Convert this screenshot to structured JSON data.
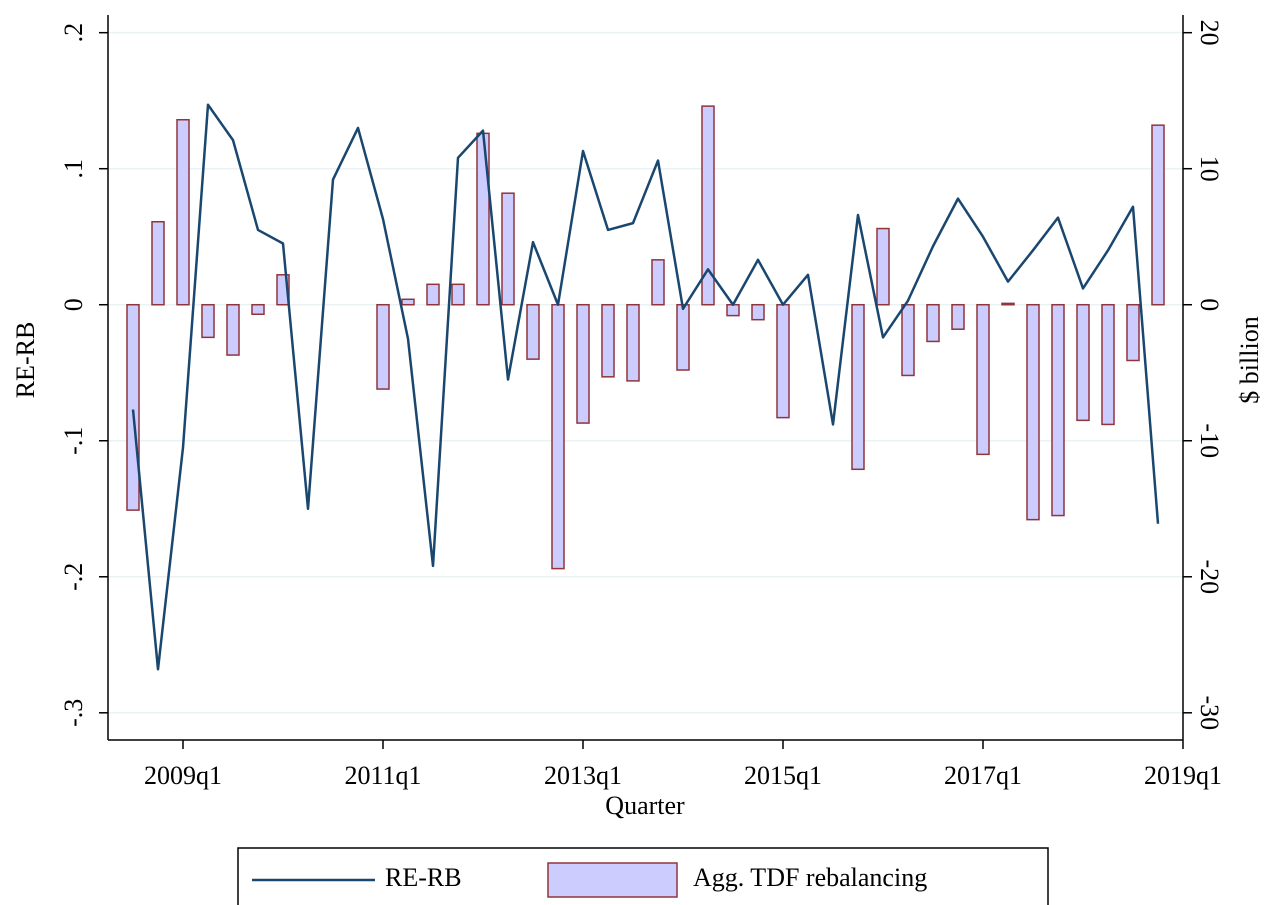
{
  "chart_data": {
    "type": "line-bar",
    "x_label": "Quarter",
    "y_label": "RE-RB",
    "y2_label": "$ billion",
    "x": [
      "2008q3",
      "2008q4",
      "2009q1",
      "2009q2",
      "2009q3",
      "2009q4",
      "2010q1",
      "2010q2",
      "2010q3",
      "2010q4",
      "2011q1",
      "2011q2",
      "2011q3",
      "2011q4",
      "2012q1",
      "2012q2",
      "2012q3",
      "2012q4",
      "2013q1",
      "2013q2",
      "2013q3",
      "2013q4",
      "2014q1",
      "2014q2",
      "2014q3",
      "2014q4",
      "2015q1",
      "2015q2",
      "2015q3",
      "2015q4",
      "2016q1",
      "2016q2",
      "2016q3",
      "2016q4",
      "2017q1",
      "2017q2",
      "2017q3",
      "2017q4",
      "2018q1",
      "2018q2",
      "2018q3",
      "2018q4"
    ],
    "xlim": [
      "2008q2",
      "2019q1"
    ],
    "xticks": [
      "2009q1",
      "2011q1",
      "2013q1",
      "2015q1",
      "2017q1",
      "2019q1"
    ],
    "ylim": [
      -0.32,
      0.213
    ],
    "yticks": [
      {
        "value": 0.2,
        "label": ".2"
      },
      {
        "value": 0.1,
        "label": ".1"
      },
      0,
      {
        "value": -0.1,
        "label": "-.1"
      },
      {
        "value": -0.2,
        "label": "-.2"
      },
      {
        "value": -0.3,
        "label": "-.3"
      }
    ],
    "y2lim": [
      -32,
      21.3
    ],
    "y2ticks": [
      20,
      10,
      0,
      -10,
      -20,
      -30
    ],
    "grid": true,
    "legend": "bottom",
    "series": [
      {
        "name": "RE-RB",
        "kind": "line",
        "color": "#1a476f",
        "values": [
          -0.077,
          -0.268,
          -0.105,
          0.147,
          0.121,
          0.055,
          0.045,
          -0.15,
          0.092,
          0.13,
          0.063,
          -0.025,
          -0.192,
          0.108,
          0.128,
          -0.055,
          0.046,
          0.0,
          0.113,
          0.055,
          0.06,
          0.106,
          -0.003,
          0.026,
          0.0,
          0.033,
          0.0,
          0.022,
          -0.088,
          0.066,
          -0.024,
          0.003,
          0.043,
          0.078,
          0.05,
          0.017,
          0.04,
          0.064,
          0.012,
          0.04,
          0.072,
          -0.161
        ]
      },
      {
        "name": "Agg. TDF rebalancing",
        "kind": "bar",
        "axis": "y2",
        "color": "#ccccff",
        "edge_color": "#90353b",
        "values": [
          -15.1,
          6.1,
          13.6,
          -2.4,
          -3.7,
          -0.7,
          2.2,
          null,
          null,
          null,
          -6.2,
          0.4,
          1.5,
          1.5,
          12.6,
          8.2,
          -4.0,
          -19.4,
          -8.7,
          -5.3,
          -5.6,
          3.3,
          -4.8,
          14.6,
          -0.8,
          -1.1,
          -8.3,
          null,
          null,
          -12.1,
          5.6,
          -5.2,
          -2.7,
          -1.8,
          -11.0,
          0.1,
          -15.8,
          -15.5,
          -8.5,
          -8.8,
          -4.1,
          13.2
        ]
      }
    ]
  }
}
